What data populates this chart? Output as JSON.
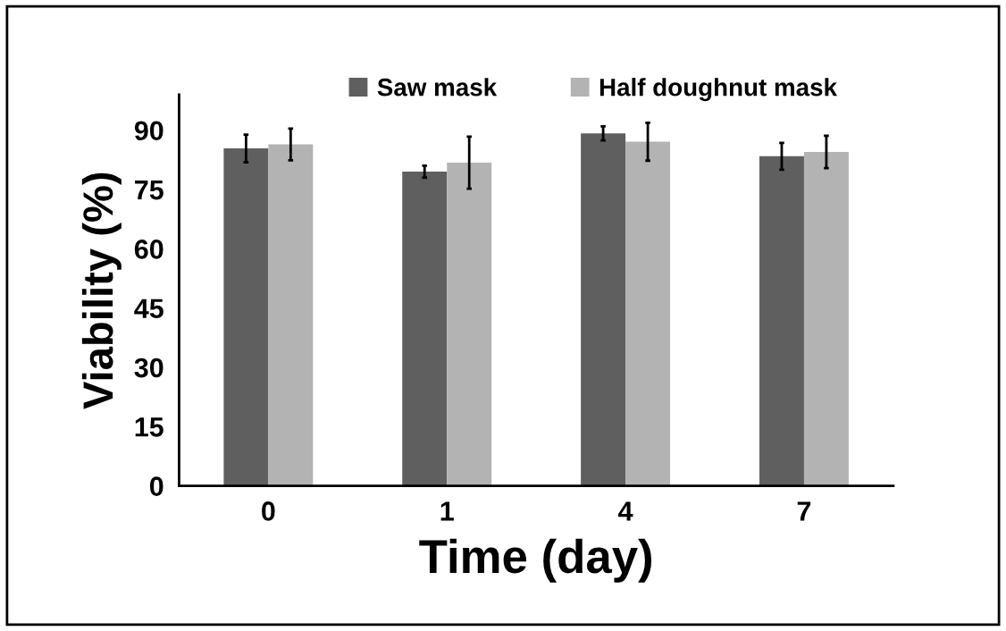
{
  "chart_data": {
    "type": "bar",
    "xlabel": "Time (day)",
    "ylabel": "Viability (%)",
    "categories": [
      "0",
      "1",
      "4",
      "7"
    ],
    "series": [
      {
        "name": "Saw mask",
        "color": "#5f5f5f",
        "values": [
          85.4,
          79.5,
          89.2,
          83.4
        ],
        "errors": [
          3.5,
          1.5,
          1.8,
          3.4
        ]
      },
      {
        "name": "Half doughnut mask",
        "color": "#b3b3b3",
        "values": [
          86.4,
          81.8,
          87.1,
          84.5
        ],
        "errors": [
          4.0,
          6.6,
          4.8,
          4.1
        ]
      }
    ],
    "ylim": [
      0,
      99
    ],
    "yticks": [
      0,
      15,
      30,
      45,
      60,
      75,
      90
    ],
    "grid": false,
    "legend": "top"
  }
}
